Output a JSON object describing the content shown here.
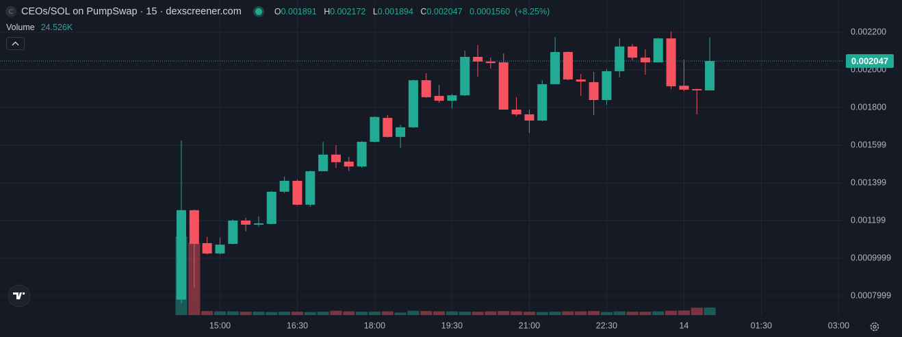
{
  "title": "CEOs/SOL on PumpSwap · 15 · dexscreener.com",
  "ohlc_labels": [
    "O",
    "H",
    "L",
    "C"
  ],
  "change": "0.0001560",
  "change_pct": "(+8.25%)",
  "volume_title": "Volume",
  "volume_value": "24.526K",
  "chart_data": {
    "type": "candlestick",
    "up_color": "#22ab94",
    "down_color": "#f7525f",
    "x": [
      0,
      1,
      2,
      3,
      4,
      5,
      6,
      7,
      8,
      9,
      10,
      11,
      12,
      13,
      14,
      15,
      16,
      17,
      18,
      19,
      20,
      21,
      22,
      23,
      24,
      25,
      26,
      27,
      28,
      29,
      30,
      31,
      32,
      33,
      34,
      35,
      36,
      37,
      38,
      39,
      40,
      41
    ],
    "open": [
      0.00078,
      0.001255,
      0.00108,
      0.001025,
      0.001076,
      0.0012,
      0.001178,
      0.001182,
      0.001353,
      0.001411,
      0.001284,
      0.001462,
      0.00155,
      0.001513,
      0.001487,
      0.001618,
      0.001745,
      0.001644,
      0.001695,
      0.001945,
      0.001862,
      0.001836,
      0.001865,
      0.002069,
      0.002044,
      0.00204,
      0.001789,
      0.001764,
      0.001731,
      0.001924,
      0.002095,
      0.001949,
      0.001935,
      0.00184,
      0.001993,
      0.002124,
      0.002065,
      0.00204,
      0.002167,
      0.001916,
      0.001898,
      0.001891
    ],
    "high": [
      0.001625,
      0.001258,
      0.001113,
      0.00111,
      0.001205,
      0.001215,
      0.001222,
      0.001356,
      0.001433,
      0.001418,
      0.001465,
      0.001618,
      0.0016,
      0.001538,
      0.001622,
      0.001753,
      0.00176,
      0.001709,
      0.001949,
      0.001982,
      0.00192,
      0.001873,
      0.002102,
      0.002131,
      0.002065,
      0.002087,
      0.001855,
      0.001789,
      0.001945,
      0.002175,
      0.002098,
      0.001978,
      0.001989,
      0.002004,
      0.002167,
      0.002138,
      0.002109,
      0.002171,
      0.002204,
      0.002055,
      0.0019,
      0.002172
    ],
    "low": [
      0.00076,
      0.000844,
      0.00102,
      0.00102,
      0.001074,
      0.001142,
      0.001167,
      0.00118,
      0.001345,
      0.00128,
      0.001273,
      0.001462,
      0.00148,
      0.001462,
      0.00148,
      0.001614,
      0.00164,
      0.001586,
      0.001691,
      0.001851,
      0.001825,
      0.001796,
      0.001862,
      0.001964,
      0.002007,
      0.001789,
      0.001753,
      0.001665,
      0.001727,
      0.001924,
      0.001945,
      0.001862,
      0.00176,
      0.001815,
      0.00196,
      0.002051,
      0.001975,
      0.00204,
      0.001898,
      0.001887,
      0.001764,
      0.001894
    ],
    "close": [
      0.001255,
      0.001076,
      0.001025,
      0.001072,
      0.0012,
      0.001178,
      0.001185,
      0.001353,
      0.001411,
      0.001284,
      0.001462,
      0.00155,
      0.00151,
      0.001487,
      0.001618,
      0.00175,
      0.001644,
      0.001695,
      0.001945,
      0.001855,
      0.001836,
      0.001865,
      0.002069,
      0.002044,
      0.002036,
      0.001789,
      0.001764,
      0.001731,
      0.001924,
      0.002095,
      0.001949,
      0.001938,
      0.00184,
      0.001993,
      0.002124,
      0.002065,
      0.00204,
      0.002167,
      0.001913,
      0.001895,
      0.001891,
      0.002047
    ],
    "volume": [
      256000,
      234000,
      13000,
      12000,
      12000,
      11000,
      11000,
      10000,
      11000,
      11000,
      10000,
      11000,
      14000,
      12000,
      11000,
      11000,
      12000,
      8000,
      14000,
      13000,
      12000,
      12000,
      11000,
      11000,
      12000,
      13000,
      12000,
      11000,
      10000,
      11000,
      12000,
      12000,
      13000,
      10000,
      12000,
      11000,
      11000,
      12000,
      14000,
      15000,
      24000,
      24526
    ],
    "xlim": [
      -14.07,
      51.35
    ],
    "xticks": [
      {
        "value": 3,
        "label": "15:00"
      },
      {
        "value": 9,
        "label": "16:30"
      },
      {
        "value": 15,
        "label": "18:00"
      },
      {
        "value": 21,
        "label": "19:30"
      },
      {
        "value": 27,
        "label": "21:00"
      },
      {
        "value": 33,
        "label": "22:30"
      },
      {
        "value": 39,
        "label": "14"
      },
      {
        "value": 45,
        "label": "01:30"
      },
      {
        "value": 51,
        "label": "03:00"
      }
    ],
    "ylim": [
      0.000698,
      0.002371
    ],
    "yticks": [
      {
        "value": 0.0022,
        "label": "0.002200"
      },
      {
        "value": 0.002,
        "label": "0.002000"
      },
      {
        "value": 0.0018,
        "label": "0.001800"
      },
      0.001599,
      0.001399,
      0.001199,
      0.0009999,
      0.0007999
    ],
    "volume_lim": [
      0,
      1024000
    ],
    "grid": true
  }
}
